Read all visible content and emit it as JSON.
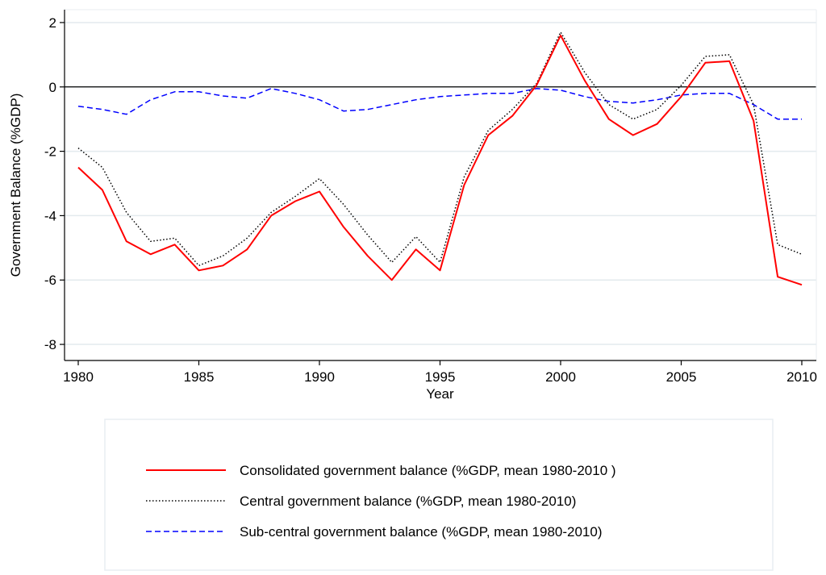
{
  "chart_data": {
    "type": "line",
    "title": "",
    "xlabel": "Year",
    "ylabel": "Government Balance (%GDP)",
    "xlim": [
      1980,
      2010
    ],
    "ylim": [
      -8.5,
      2.4
    ],
    "x_ticks": [
      1980,
      1985,
      1990,
      1995,
      2000,
      2005,
      2010
    ],
    "y_ticks": [
      -8,
      -6,
      -4,
      -2,
      0,
      2
    ],
    "grid": "horizontal",
    "zero_line": true,
    "legend_position": "bottom",
    "x": [
      1980,
      1981,
      1982,
      1983,
      1984,
      1985,
      1986,
      1987,
      1988,
      1989,
      1990,
      1991,
      1992,
      1993,
      1994,
      1995,
      1996,
      1997,
      1998,
      1999,
      2000,
      2001,
      2002,
      2003,
      2004,
      2005,
      2006,
      2007,
      2008,
      2009,
      2010
    ],
    "series": [
      {
        "name": "Consolidated government balance (%GDP, mean 1980-2010 )",
        "color": "#ff0000",
        "style": "solid",
        "values": [
          -2.5,
          -3.2,
          -4.8,
          -5.2,
          -4.9,
          -5.7,
          -5.55,
          -5.05,
          -4.0,
          -3.55,
          -3.25,
          -4.35,
          -5.25,
          -6.0,
          -5.05,
          -5.7,
          -3.05,
          -1.5,
          -0.9,
          0.05,
          1.6,
          0.2,
          -1.0,
          -1.5,
          -1.15,
          -0.3,
          0.75,
          0.8,
          -1.05,
          -5.9,
          -6.15
        ]
      },
      {
        "name": "Central government balance (%GDP, mean 1980-2010)",
        "color": "#000000",
        "style": "dotted",
        "values": [
          -1.9,
          -2.5,
          -3.9,
          -4.8,
          -4.7,
          -5.55,
          -5.25,
          -4.7,
          -3.9,
          -3.4,
          -2.85,
          -3.65,
          -4.6,
          -5.45,
          -4.65,
          -5.45,
          -2.8,
          -1.35,
          -0.7,
          0.1,
          1.7,
          0.45,
          -0.55,
          -1.0,
          -0.7,
          0.05,
          0.95,
          1.0,
          -0.55,
          -4.9,
          -5.2
        ]
      },
      {
        "name": "Sub-central government balance (%GDP, mean 1980-2010)",
        "color": "#0000ff",
        "style": "dashed",
        "values": [
          -0.6,
          -0.7,
          -0.85,
          -0.4,
          -0.15,
          -0.15,
          -0.28,
          -0.35,
          -0.05,
          -0.2,
          -0.4,
          -0.75,
          -0.7,
          -0.55,
          -0.4,
          -0.3,
          -0.25,
          -0.2,
          -0.2,
          -0.05,
          -0.1,
          -0.3,
          -0.45,
          -0.5,
          -0.4,
          -0.25,
          -0.2,
          -0.2,
          -0.55,
          -1.0,
          -1.0
        ]
      }
    ]
  }
}
